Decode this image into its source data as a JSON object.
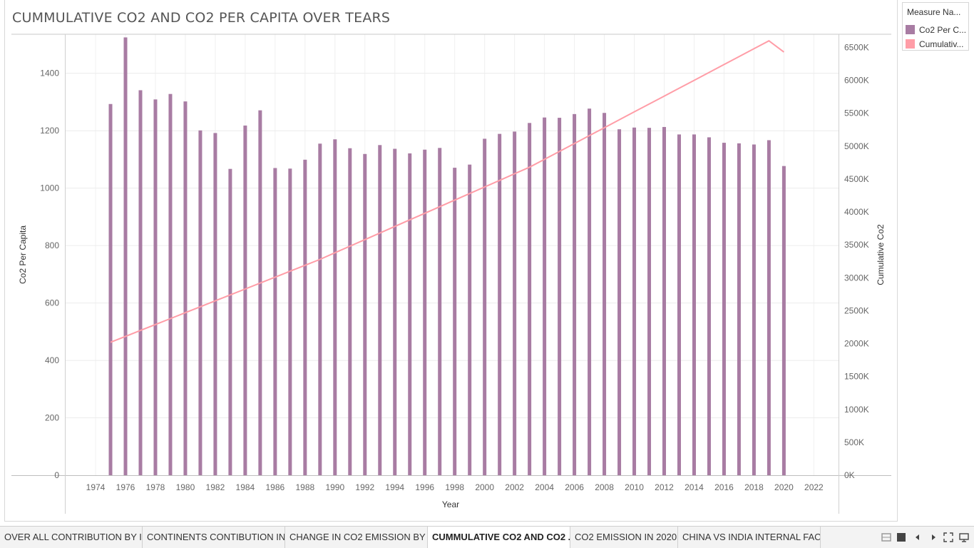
{
  "title": "CUMMULATIVE CO2 AND CO2 PER CAPITA OVER TEARS",
  "legend": {
    "title": "Measure Na...",
    "items": [
      {
        "label": "Co2 Per C...",
        "color": "#a87ca3"
      },
      {
        "label": "Cumulativ...",
        "color": "#ff9da7"
      }
    ]
  },
  "tabs": [
    {
      "label": "OVER ALL CONTRIBUTION BY I...",
      "active": false
    },
    {
      "label": "CONTINENTS CONTIBUTION IN...",
      "active": false
    },
    {
      "label": "CHANGE IN CO2 EMISSION BY ...",
      "active": false
    },
    {
      "label": "CUMMULATIVE CO2 AND CO2 ...",
      "active": true
    },
    {
      "label": "CO2 EMISSION IN 2020",
      "active": false
    },
    {
      "label": "CHINA VS INDIA INTERNAL FAC...",
      "active": false
    }
  ],
  "tab_nav_icons": [
    "grid-view-icon",
    "filmstrip-icon",
    "previous-sheet-icon",
    "next-sheet-icon",
    "fit-screen-icon",
    "presentation-mode-icon"
  ],
  "chart_data": {
    "type": "bar",
    "xlabel": "Year",
    "ylabel_left": "Co2 Per Capita",
    "ylabel_right": "Cumulative Co2",
    "x_ticks": [
      1974,
      1976,
      1978,
      1980,
      1982,
      1984,
      1986,
      1988,
      1990,
      1992,
      1994,
      1996,
      1998,
      2000,
      2002,
      2004,
      2006,
      2008,
      2010,
      2012,
      2014,
      2016,
      2018,
      2020,
      2022
    ],
    "xlim": [
      1971.95,
      2023.65
    ],
    "y_left_ticks": [
      0,
      200,
      400,
      600,
      800,
      1000,
      1200,
      1400
    ],
    "y_left_tick_labels": [
      "0",
      "200",
      "400",
      "600",
      "800",
      "1000",
      "1200",
      "1400"
    ],
    "ylim_left": [
      0,
      1536
    ],
    "y_right_ticks": [
      0,
      500000,
      1000000,
      1500000,
      2000000,
      2500000,
      3000000,
      3500000,
      4000000,
      4500000,
      5000000,
      5500000,
      6000000,
      6500000
    ],
    "y_right_tick_labels": [
      "0K",
      "500K",
      "1000K",
      "1500K",
      "2000K",
      "2500K",
      "3000K",
      "3500K",
      "4000K",
      "4500K",
      "5000K",
      "5500K",
      "6000K",
      "6500K"
    ],
    "ylim_right": [
      0,
      6700000
    ],
    "grid": true,
    "legend_position": "top-right",
    "x": [
      1975,
      1976,
      1977,
      1978,
      1979,
      1980,
      1981,
      1982,
      1983,
      1984,
      1985,
      1986,
      1987,
      1988,
      1989,
      1990,
      1991,
      1992,
      1993,
      1994,
      1995,
      1996,
      1997,
      1998,
      1999,
      2000,
      2001,
      2002,
      2003,
      2004,
      2005,
      2006,
      2007,
      2008,
      2009,
      2010,
      2011,
      2012,
      2013,
      2014,
      2015,
      2016,
      2017,
      2018,
      2019,
      2020
    ],
    "series": [
      {
        "name": "Co2 Per Capita",
        "type": "bar",
        "axis": "left",
        "color": "#a87ca3",
        "values": [
          1293,
          1525,
          1341,
          1309,
          1328,
          1302,
          1201,
          1192,
          1067,
          1218,
          1271,
          1070,
          1068,
          1099,
          1155,
          1170,
          1139,
          1119,
          1150,
          1137,
          1121,
          1134,
          1140,
          1071,
          1082,
          1172,
          1189,
          1197,
          1227,
          1246,
          1245,
          1258,
          1277,
          1262,
          1205,
          1211,
          1210,
          1213,
          1187,
          1187,
          1177,
          1158,
          1156,
          1152,
          1167,
          1077
        ]
      },
      {
        "name": "Cumulative Co2",
        "type": "line",
        "axis": "right",
        "color": "#ff9da7",
        "values": [
          2020000,
          2110000,
          2200000,
          2290000,
          2380000,
          2470000,
          2560000,
          2650000,
          2740000,
          2830000,
          2920000,
          3010000,
          3100000,
          3190000,
          3280000,
          3380000,
          3480000,
          3580000,
          3680000,
          3780000,
          3880000,
          3980000,
          4080000,
          4180000,
          4280000,
          4380000,
          4480000,
          4580000,
          4680000,
          4800000,
          4920000,
          5040000,
          5160000,
          5280000,
          5400000,
          5520000,
          5640000,
          5760000,
          5880000,
          6000000,
          6120000,
          6240000,
          6360000,
          6480000,
          6600000,
          6430000
        ]
      }
    ]
  }
}
